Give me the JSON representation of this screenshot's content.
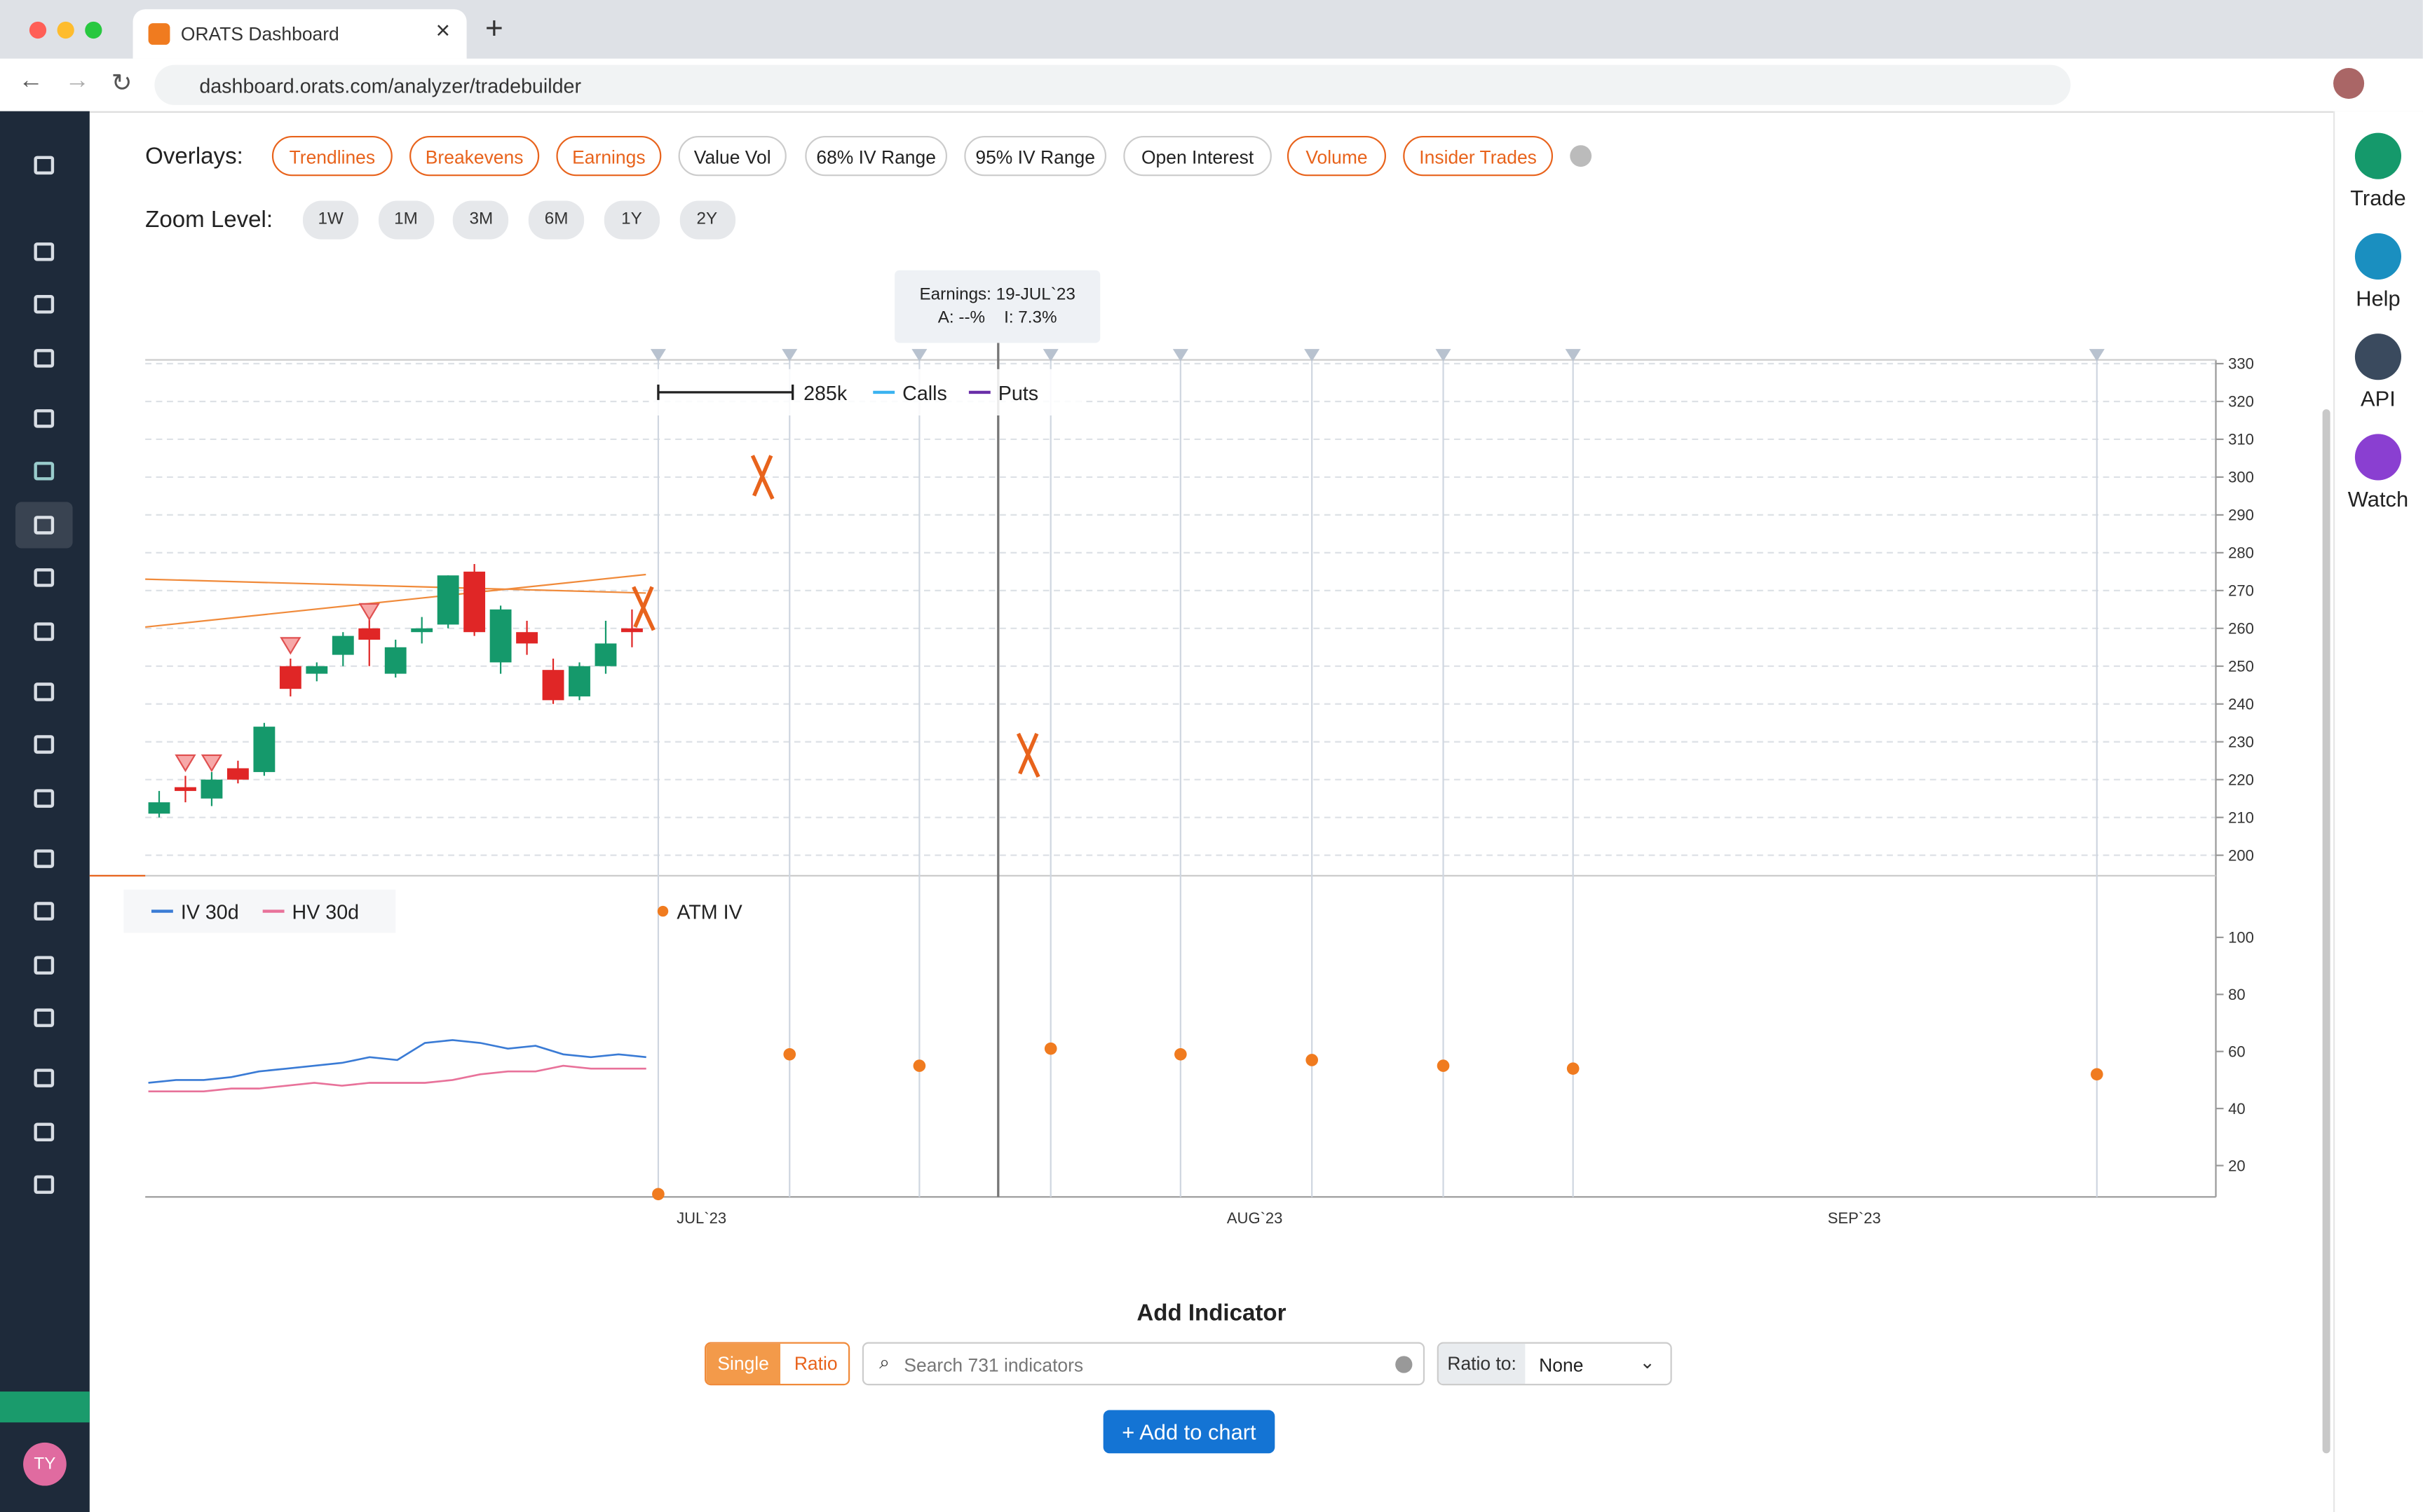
{
  "browser": {
    "tab_title": "ORATS Dashboard",
    "url": "dashboard.orats.com/analyzer/tradebuilder"
  },
  "overlays": {
    "label": "Overlays:",
    "buttons": [
      "Trendlines",
      "Breakevens",
      "Earnings",
      "Value Vol",
      "68% IV Range",
      "95% IV Range",
      "Open Interest",
      "Volume",
      "Insider Trades"
    ],
    "active": [
      true,
      true,
      true,
      false,
      false,
      false,
      false,
      true,
      true
    ]
  },
  "zoom": {
    "label": "Zoom Level:",
    "buttons": [
      "1W",
      "1M",
      "3M",
      "6M",
      "1Y",
      "2Y"
    ]
  },
  "right_panel": [
    "Trade",
    "Help",
    "API",
    "Watch"
  ],
  "user_initials": "TY",
  "tooltip": {
    "line1": "Earnings: 19-JUL`23",
    "line2": "A: --%",
    "line3": "I: 7.3%"
  },
  "chart_data": [
    {
      "type": "candlestick",
      "volume_scale_label": "285k",
      "series": [
        {
          "name": "Calls",
          "color": "#3bb3f0"
        },
        {
          "name": "Puts",
          "color": "#6a2fa8"
        }
      ],
      "up_color": "#15996b",
      "down_color": "#e02626",
      "candles": [
        {
          "open": 211,
          "close": 214,
          "high": 217,
          "low": 210
        },
        {
          "open": 218,
          "close": 217,
          "high": 221,
          "low": 214
        },
        {
          "open": 215,
          "close": 220,
          "high": 222,
          "low": 213
        },
        {
          "open": 223,
          "close": 220,
          "high": 225,
          "low": 219
        },
        {
          "open": 222,
          "close": 234,
          "high": 235,
          "low": 221
        },
        {
          "open": 250,
          "close": 244,
          "high": 252,
          "low": 242
        },
        {
          "open": 248,
          "close": 250,
          "high": 251,
          "low": 246
        },
        {
          "open": 253,
          "close": 258,
          "high": 259,
          "low": 250
        },
        {
          "open": 260,
          "close": 257,
          "high": 263,
          "low": 250
        },
        {
          "open": 248,
          "close": 255,
          "high": 257,
          "low": 247
        },
        {
          "open": 259,
          "close": 260,
          "high": 263,
          "low": 256
        },
        {
          "open": 261,
          "close": 274,
          "high": 274,
          "low": 260
        },
        {
          "open": 275,
          "close": 259,
          "high": 277,
          "low": 258
        },
        {
          "open": 251,
          "close": 265,
          "high": 266,
          "low": 248
        },
        {
          "open": 259,
          "close": 256,
          "high": 262,
          "low": 253
        },
        {
          "open": 249,
          "close": 241,
          "high": 252,
          "low": 240
        },
        {
          "open": 242,
          "close": 250,
          "high": 251,
          "low": 241
        },
        {
          "open": 250,
          "close": 256,
          "high": 262,
          "low": 248
        },
        {
          "open": 260,
          "close": 259,
          "high": 265,
          "low": 255
        }
      ],
      "ylim": [
        195,
        331
      ],
      "yticks": [
        200,
        210,
        220,
        230,
        240,
        250,
        260,
        270,
        280,
        290,
        300,
        310,
        320,
        330
      ]
    },
    {
      "type": "line",
      "series": [
        {
          "name": "IV 30d",
          "color": "#3a7bd5",
          "values": [
            49,
            50,
            50,
            51,
            53,
            54,
            55,
            56,
            58,
            57,
            63,
            64,
            63,
            61,
            62,
            59,
            58,
            59,
            58
          ]
        },
        {
          "name": "HV 30d",
          "color": "#e8729a",
          "values": [
            46,
            46,
            46,
            47,
            47,
            48,
            49,
            48,
            49,
            49,
            49,
            50,
            52,
            53,
            53,
            55,
            54,
            54,
            54
          ]
        }
      ],
      "atm_iv": {
        "name": "ATM IV",
        "color": "#f07b1f",
        "values": [
          10,
          59,
          55,
          61,
          59,
          57,
          55,
          54,
          52
        ]
      },
      "ylim": [
        9,
        120
      ],
      "yticks": [
        20,
        40,
        60,
        80,
        100
      ],
      "xlabels": [
        "JUL`23",
        "AUG`23",
        "SEP`23"
      ]
    }
  ],
  "add_indicator": {
    "title": "Add Indicator",
    "modes": [
      "Single",
      "Ratio"
    ],
    "search_placeholder": "Search 731 indicators",
    "ratio_label": "Ratio to:",
    "ratio_value": "None",
    "button": "+ Add to chart"
  }
}
